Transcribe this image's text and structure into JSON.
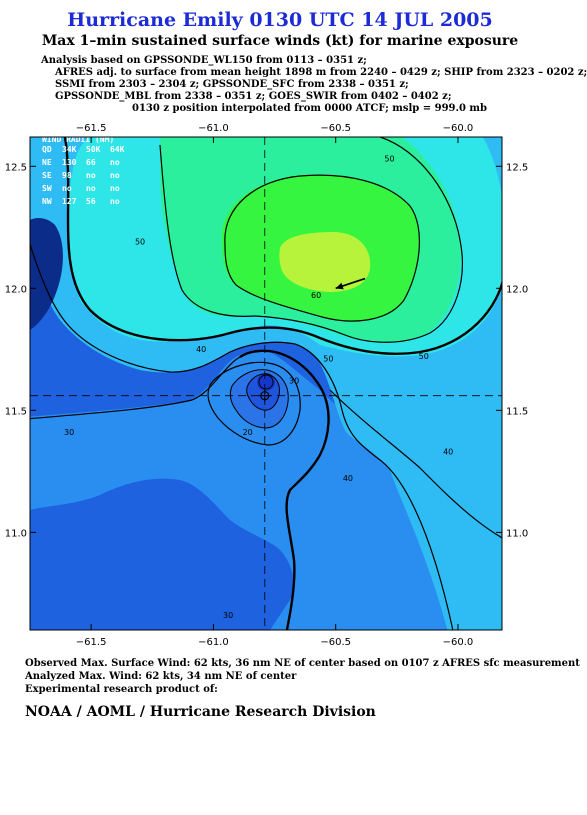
{
  "header": {
    "title": "Hurricane Emily 0130 UTC 14 JUL 2005",
    "subtitle": "Max 1–min sustained surface winds (kt) for marine exposure",
    "analysis_lines": [
      "Analysis based on  GPSSONDE_WL150 from 0113 – 0351 z;",
      "AFRES adj. to surface from mean height 1898 m from 2240 – 0429 z;  SHIP from 2323 – 0202 z;",
      "SSMI from 2303 – 2304 z;  GPSSONDE_SFC from 2338 – 0351 z;",
      "GPSSONDE_MBL from 2338 – 0351 z;  GOES_SWIR from 0402 – 0402 z;",
      "0130 z position interpolated from 0000 ATCF; mslp = 999.0 mb"
    ]
  },
  "chart_data": {
    "type": "contour",
    "xlim": [
      -61.75,
      -59.82
    ],
    "ylim": [
      10.6,
      12.62
    ],
    "x_ticks": [
      "−61.5",
      "−61.0",
      "−60.5",
      "−60.0"
    ],
    "x_tick_values": [
      -61.5,
      -61.0,
      -60.5,
      -60.0
    ],
    "y_ticks": [
      "12.5",
      "12.0",
      "11.5",
      "11.0"
    ],
    "y_tick_values": [
      12.5,
      12.0,
      11.5,
      11.0
    ],
    "center": {
      "lon": -60.79,
      "lat": 11.56
    },
    "storm_motion_arrow": {
      "from": [
        -60.38,
        12.04
      ],
      "to": [
        -60.5,
        12.0
      ]
    },
    "contour_labels": [
      {
        "text": "50",
        "lon": -60.28,
        "lat": 12.52
      },
      {
        "text": "50",
        "lon": -61.3,
        "lat": 12.18
      },
      {
        "text": "60",
        "lon": -60.58,
        "lat": 11.96
      },
      {
        "text": "50",
        "lon": -60.53,
        "lat": 11.7
      },
      {
        "text": "50",
        "lon": -60.14,
        "lat": 11.71
      },
      {
        "text": "40",
        "lon": -61.05,
        "lat": 11.74
      },
      {
        "text": "30",
        "lon": -60.67,
        "lat": 11.61
      },
      {
        "text": "30",
        "lon": -61.59,
        "lat": 11.4
      },
      {
        "text": "20",
        "lon": -60.86,
        "lat": 11.4
      },
      {
        "text": "40",
        "lon": -60.04,
        "lat": 11.32
      },
      {
        "text": "40",
        "lon": -60.45,
        "lat": 11.21
      },
      {
        "text": "30",
        "lon": -60.94,
        "lat": 10.65
      }
    ],
    "wind_radii": {
      "header": [
        "QD",
        "34K",
        "50K",
        "64K"
      ],
      "rows": [
        [
          "NE",
          "130",
          "66",
          "no"
        ],
        [
          "SE",
          "98",
          "no",
          "no"
        ],
        [
          "SW",
          "no",
          "no",
          "no"
        ],
        [
          "NW",
          "127",
          "56",
          "no"
        ]
      ]
    },
    "fill_colors": {
      "c0": "#1e62e0",
      "c1": "#2a8ef0",
      "c2": "#2fbcf4",
      "c3": "#2ee6e8",
      "c4": "#2cef9e",
      "c5": "#36f540",
      "c6": "#b6f33a",
      "inner1": "#2b74e8",
      "inner2": "#1f55dc",
      "inner3": "#1437c8",
      "land": "#0c2c8a"
    }
  },
  "footer": {
    "observed": "Observed Max. Surface Wind: 62 kts, 36 nm NE of center based on 0107 z AFRES sfc measurement",
    "analyzed": "Analyzed Max. Wind: 62 kts, 34 nm NE of center",
    "product": "Experimental research product of:",
    "org": "NOAA / AOML / Hurricane Research Division"
  }
}
